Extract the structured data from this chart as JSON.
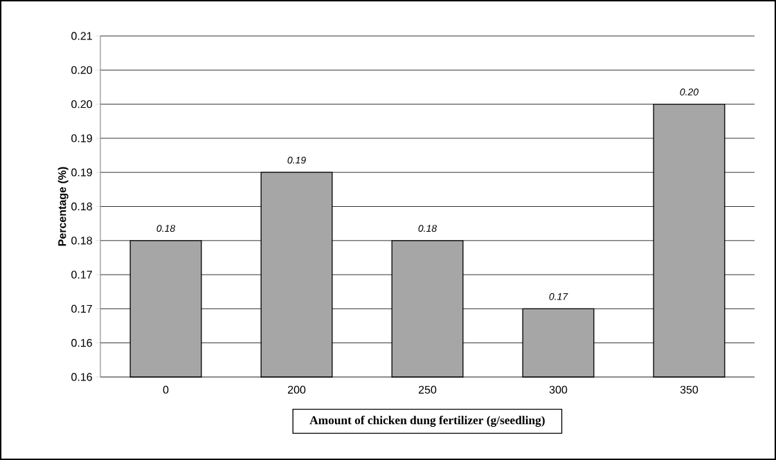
{
  "chart_data": {
    "type": "bar",
    "xlabel": "Amount of chicken dung fertilizer (g/seedling)",
    "ylabel": "Percentage (%)",
    "categories": [
      "0",
      "200",
      "250",
      "300",
      "350"
    ],
    "values": [
      0.18,
      0.19,
      0.18,
      0.17,
      0.2
    ],
    "color": "#a6a6a6",
    "value_labels": [
      "0.18",
      "0.19",
      "0.18",
      "0.17",
      "0.20"
    ],
    "ylim": [
      0.16,
      0.21
    ],
    "yticks": [
      0.16,
      {
        "value": 0.165,
        "label": "0.16"
      },
      0.17,
      {
        "value": 0.175,
        "label": "0.17"
      },
      0.18,
      {
        "value": 0.185,
        "label": "0.18"
      },
      0.19,
      {
        "value": 0.195,
        "label": "0.19"
      },
      {
        "value": 0.2,
        "label": "0.20"
      },
      {
        "value": 0.205,
        "label": "0.20"
      },
      0.21
    ],
    "grid": "y"
  }
}
